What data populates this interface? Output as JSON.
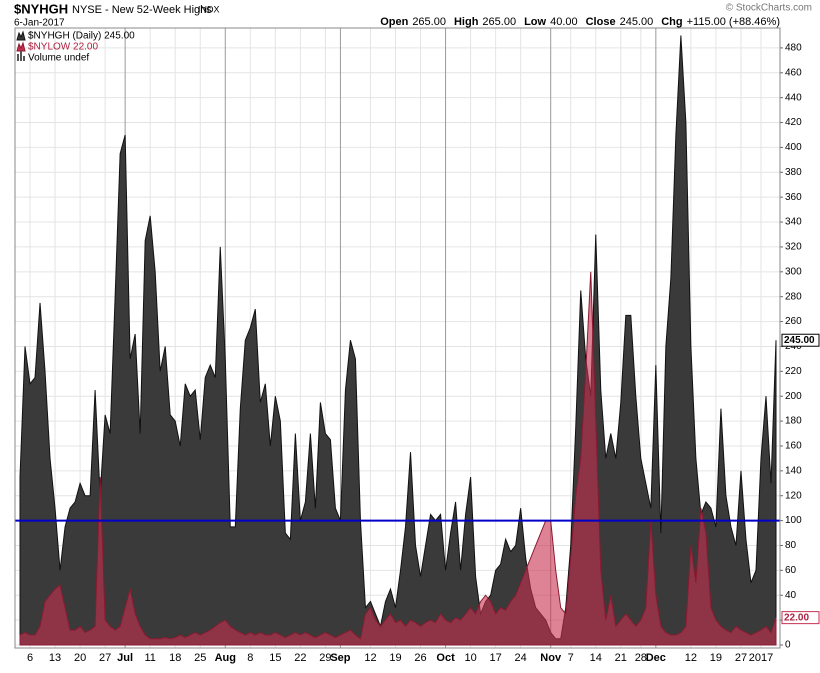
{
  "chart_data": {
    "type": "area",
    "symbol": "$NYHGH",
    "title": "NYSE - New 52-Week Highs",
    "exchange_tag": "INDX",
    "date": "6-Jan-2017",
    "credit": "© StockCharts.com",
    "quote": [
      {
        "label": "Open",
        "value": "265.00"
      },
      {
        "label": "High",
        "value": "265.00"
      },
      {
        "label": "Low",
        "value": "40.00"
      },
      {
        "label": "Close",
        "value": "245.00"
      },
      {
        "label": "Chg",
        "value": "+115.00 (+88.46%)"
      }
    ],
    "legend_extra": "Volume undef",
    "categories": [
      null,
      null,
      "6",
      null,
      null,
      null,
      null,
      "13",
      null,
      null,
      null,
      null,
      "20",
      null,
      null,
      null,
      null,
      "27",
      null,
      null,
      null,
      "Jul",
      null,
      null,
      null,
      null,
      "11",
      null,
      null,
      null,
      null,
      "18",
      null,
      null,
      null,
      null,
      "25",
      null,
      null,
      null,
      null,
      "Aug",
      null,
      null,
      null,
      null,
      "8",
      null,
      null,
      null,
      null,
      "15",
      null,
      null,
      null,
      null,
      "22",
      null,
      null,
      null,
      null,
      "29",
      null,
      null,
      "Sep",
      null,
      null,
      null,
      null,
      null,
      "12",
      null,
      null,
      null,
      null,
      "19",
      null,
      null,
      null,
      null,
      "26",
      null,
      null,
      null,
      null,
      "Oct",
      null,
      null,
      null,
      null,
      "10",
      null,
      null,
      null,
      null,
      "17",
      null,
      null,
      null,
      null,
      "24",
      null,
      null,
      null,
      null,
      null,
      "Nov",
      null,
      null,
      null,
      "7",
      null,
      null,
      null,
      null,
      "14",
      null,
      null,
      null,
      null,
      "21",
      null,
      null,
      null,
      "28",
      null,
      null,
      "Dec",
      null,
      null,
      null,
      null,
      null,
      null,
      "12",
      null,
      null,
      null,
      null,
      "19",
      null,
      null,
      null,
      null,
      "27",
      null,
      null,
      null,
      "2017",
      null,
      null,
      null
    ],
    "series": [
      {
        "name": "$NYHGH (Daily) 245.00",
        "last_value_label": "245.00",
        "color": "#3a3a3a",
        "line_color": "#111111",
        "values": [
          135,
          240,
          210,
          215,
          275,
          220,
          150,
          110,
          60,
          95,
          110,
          115,
          130,
          120,
          120,
          205,
          120,
          185,
          170,
          280,
          395,
          410,
          230,
          250,
          170,
          325,
          345,
          300,
          220,
          240,
          185,
          180,
          160,
          210,
          200,
          205,
          165,
          215,
          225,
          215,
          320,
          230,
          95,
          95,
          190,
          245,
          255,
          270,
          195,
          210,
          160,
          200,
          180,
          90,
          85,
          170,
          100,
          115,
          170,
          110,
          195,
          170,
          165,
          110,
          100,
          205,
          245,
          230,
          100,
          30,
          35,
          25,
          15,
          35,
          45,
          30,
          60,
          95,
          155,
          80,
          55,
          80,
          105,
          100,
          105,
          60,
          90,
          115,
          60,
          105,
          135,
          55,
          25,
          35,
          40,
          60,
          65,
          85,
          75,
          80,
          110,
          70,
          45,
          30,
          25,
          20,
          10,
          5,
          5,
          30,
          80,
          175,
          285,
          230,
          200,
          330,
          205,
          150,
          170,
          150,
          195,
          265,
          265,
          200,
          150,
          130,
          110,
          225,
          90,
          240,
          295,
          410,
          490,
          420,
          240,
          150,
          105,
          115,
          110,
          95,
          190,
          120,
          95,
          80,
          140,
          85,
          50,
          60,
          150,
          200,
          130,
          245
        ]
      },
      {
        "name": "$NYLOW 22.00",
        "last_value_label": "22.00",
        "color": "#c8304f",
        "line_color": "#8b1a30",
        "values": [
          8,
          10,
          8,
          8,
          15,
          35,
          40,
          45,
          48,
          30,
          12,
          12,
          15,
          10,
          12,
          15,
          135,
          20,
          15,
          12,
          15,
          30,
          45,
          25,
          15,
          8,
          5,
          5,
          5,
          6,
          5,
          6,
          8,
          6,
          8,
          10,
          8,
          10,
          12,
          15,
          18,
          20,
          15,
          12,
          10,
          8,
          10,
          8,
          10,
          8,
          8,
          10,
          8,
          6,
          8,
          10,
          8,
          10,
          8,
          6,
          8,
          10,
          8,
          6,
          8,
          10,
          12,
          8,
          5,
          25,
          30,
          20,
          15,
          20,
          25,
          18,
          20,
          15,
          20,
          18,
          15,
          18,
          20,
          18,
          25,
          20,
          18,
          22,
          20,
          25,
          30,
          25,
          35,
          40,
          35,
          25,
          30,
          28,
          35,
          40,
          50,
          60,
          70,
          80,
          90,
          100,
          100,
          60,
          30,
          25,
          70,
          120,
          150,
          220,
          300,
          180,
          60,
          20,
          40,
          15,
          20,
          25,
          20,
          15,
          20,
          30,
          100,
          40,
          15,
          10,
          8,
          8,
          10,
          15,
          80,
          50,
          110,
          90,
          30,
          20,
          15,
          12,
          10,
          15,
          12,
          10,
          8,
          10,
          12,
          15,
          10,
          22
        ]
      }
    ],
    "reference_line": {
      "value": 100,
      "color": "#0000c8"
    },
    "ylim": [
      0,
      496
    ],
    "yticks": [
      0,
      20,
      40,
      60,
      80,
      100,
      120,
      140,
      160,
      180,
      200,
      220,
      240,
      260,
      280,
      300,
      320,
      340,
      360,
      380,
      400,
      420,
      440,
      460,
      480
    ],
    "grid": true
  }
}
